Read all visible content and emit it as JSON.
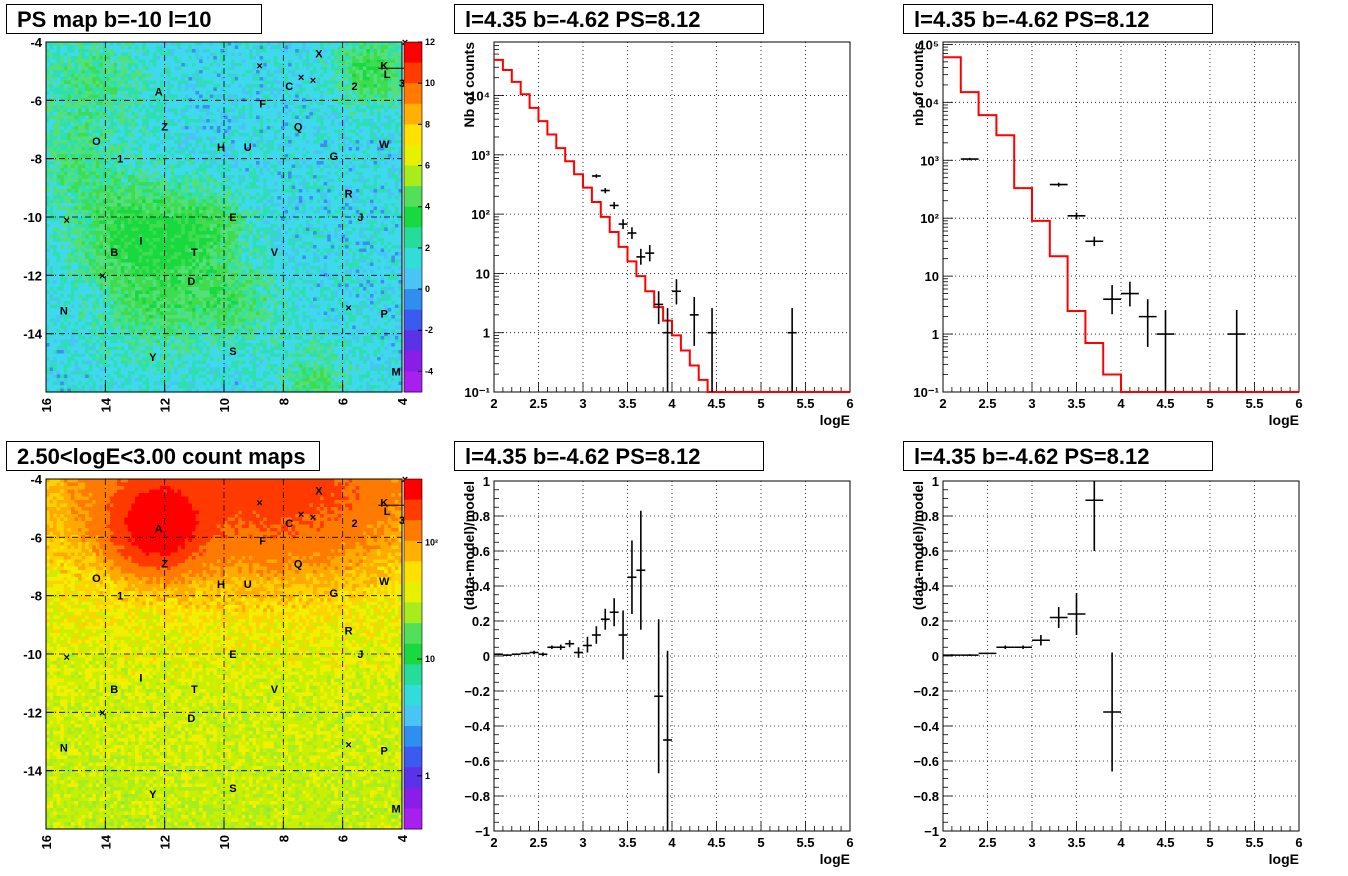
{
  "titles": {
    "map_top": "PS map b=-10 l=10",
    "map_bottom": "2.50<logE<3.00 count maps",
    "spec_left": "l=4.35 b=-4.62 PS=8.12",
    "spec_right": "l=4.35 b=-4.62 PS=8.12",
    "res_left": "l=4.35 b=-4.62 PS=8.12",
    "res_right": "l=4.35 b=-4.62 PS=8.12"
  },
  "colors": {
    "model": "#ff0000",
    "data": "#000000",
    "ps_background": "#3fd9ee",
    "count_background": "#b7f03a"
  },
  "chart_data": [
    {
      "id": "ps_map",
      "type": "heatmap",
      "title": "PS map b=-10 l=10",
      "xlim": [
        16,
        4
      ],
      "ylim": [
        -16,
        -4
      ],
      "xticks": [
        16,
        14,
        12,
        10,
        8,
        6,
        4
      ],
      "yticks": [
        -4,
        -6,
        -8,
        -10,
        -12,
        -14
      ],
      "zlim": [
        -5,
        12
      ],
      "colorbar_ticks": [
        "12",
        "10",
        "8",
        "6",
        "4",
        "2",
        "0",
        "-2",
        "-4"
      ],
      "colorbar_values": [
        12,
        10,
        8,
        6,
        4,
        2,
        0,
        -2,
        -4
      ],
      "sources": [
        {
          "label": "X",
          "l": 6.8,
          "b": -4.4
        },
        {
          "label": "K",
          "l": 4.6,
          "b": -4.8
        },
        {
          "label": "L",
          "l": 4.5,
          "b": -5.1
        },
        {
          "label": "3",
          "l": 4.0,
          "b": -5.4
        },
        {
          "label": "2",
          "l": 5.6,
          "b": -5.5
        },
        {
          "label": "C",
          "l": 7.8,
          "b": -5.5
        },
        {
          "label": "A",
          "l": 12.2,
          "b": -5.7
        },
        {
          "label": "F",
          "l": 8.7,
          "b": -6.1
        },
        {
          "label": "Z",
          "l": 12.0,
          "b": -6.9
        },
        {
          "label": "Q",
          "l": 7.5,
          "b": -6.9
        },
        {
          "label": "O",
          "l": 14.3,
          "b": -7.4
        },
        {
          "label": "H",
          "l": 10.1,
          "b": -7.6
        },
        {
          "label": "U",
          "l": 9.2,
          "b": -7.6
        },
        {
          "label": "W",
          "l": 4.6,
          "b": -7.5
        },
        {
          "label": "G",
          "l": 6.3,
          "b": -7.9
        },
        {
          "label": "1",
          "l": 13.5,
          "b": -8.0
        },
        {
          "label": "R",
          "l": 5.8,
          "b": -9.2
        },
        {
          "label": "E",
          "l": 9.7,
          "b": -10.0
        },
        {
          "label": "J",
          "l": 5.4,
          "b": -10.0
        },
        {
          "label": "I",
          "l": 12.8,
          "b": -10.8
        },
        {
          "label": "B",
          "l": 13.7,
          "b": -11.2
        },
        {
          "label": "T",
          "l": 11.0,
          "b": -11.2
        },
        {
          "label": "V",
          "l": 8.3,
          "b": -11.2
        },
        {
          "label": "D",
          "l": 11.1,
          "b": -12.2
        },
        {
          "label": "N",
          "l": 15.4,
          "b": -13.2
        },
        {
          "label": "P",
          "l": 4.6,
          "b": -13.3
        },
        {
          "label": "Y",
          "l": 12.4,
          "b": -14.8
        },
        {
          "label": "S",
          "l": 9.7,
          "b": -14.6
        },
        {
          "label": "M",
          "l": 4.2,
          "b": -15.3
        }
      ],
      "crosses": [
        {
          "l": 8.8,
          "b": -4.8
        },
        {
          "l": 7.4,
          "b": -5.2
        },
        {
          "l": 7.0,
          "b": -5.3
        },
        {
          "l": 3.9,
          "b": -4.0
        },
        {
          "l": 15.3,
          "b": -10.1
        },
        {
          "l": 14.1,
          "b": -12.0
        },
        {
          "l": 5.8,
          "b": -13.1
        }
      ]
    },
    {
      "id": "count_map",
      "type": "heatmap",
      "title": "2.50<logE<3.00 count maps",
      "xlim": [
        16,
        4
      ],
      "ylim": [
        -16,
        -4
      ],
      "xticks": [
        16,
        14,
        12,
        10,
        8,
        6,
        4
      ],
      "yticks": [
        -4,
        -6,
        -8,
        -10,
        -12,
        -14
      ],
      "zscale": "log",
      "colorbar_ticks": [
        "10²",
        "10",
        "1"
      ],
      "colorbar_values": [
        100,
        10,
        1
      ]
    },
    {
      "id": "spec_left",
      "type": "line",
      "title": "l=4.35 b=-4.62 PS=8.12",
      "xlabel": "logE",
      "ylabel": "Nb of counts",
      "xlim": [
        2,
        6
      ],
      "ylim": [
        0.1,
        80000
      ],
      "yscale": "log",
      "xticks": [
        "2",
        "2.5",
        "3",
        "3.5",
        "4",
        "4.5",
        "5",
        "5.5",
        "6"
      ],
      "yticks": [
        "10⁻¹",
        "1",
        "10",
        "10²",
        "10³",
        "10⁴"
      ],
      "grid": true,
      "series": [
        {
          "kind": "histogram-model",
          "bin_width": 0.1,
          "x_start": 2.0,
          "values": [
            40000,
            27000,
            17000,
            10500,
            6200,
            3700,
            2200,
            1300,
            780,
            470,
            280,
            160,
            90,
            50,
            28,
            16,
            9,
            5,
            2.7,
            1.6,
            0.9,
            0.5,
            0.28,
            0.16,
            0.1,
            0.1,
            0.1,
            0.1,
            0.1,
            0.1,
            0.1,
            0.1,
            0.1,
            0.1,
            0.1,
            0.1,
            0.1,
            0.1,
            0.1,
            0.1
          ]
        },
        {
          "kind": "data-points",
          "points": [
            {
              "x": 3.15,
              "y": 440,
              "ylo": 410,
              "yhi": 470
            },
            {
              "x": 3.25,
              "y": 250,
              "ylo": 225,
              "yhi": 275
            },
            {
              "x": 3.35,
              "y": 140,
              "ylo": 122,
              "yhi": 160
            },
            {
              "x": 3.45,
              "y": 68,
              "ylo": 56,
              "yhi": 82
            },
            {
              "x": 3.55,
              "y": 48,
              "ylo": 38,
              "yhi": 60
            },
            {
              "x": 3.65,
              "y": 19,
              "ylo": 14,
              "yhi": 26
            },
            {
              "x": 3.75,
              "y": 22,
              "ylo": 16,
              "yhi": 30
            },
            {
              "x": 3.85,
              "y": 3,
              "ylo": 1.4,
              "yhi": 5
            },
            {
              "x": 3.95,
              "y": 1,
              "ylo": 0.1,
              "yhi": 2.6
            },
            {
              "x": 4.05,
              "y": 5,
              "ylo": 3,
              "yhi": 8
            },
            {
              "x": 4.25,
              "y": 2,
              "ylo": 0.6,
              "yhi": 4
            },
            {
              "x": 4.45,
              "y": 1,
              "ylo": 0.1,
              "yhi": 2.6
            },
            {
              "x": 5.35,
              "y": 1,
              "ylo": 0.1,
              "yhi": 2.6
            }
          ]
        }
      ]
    },
    {
      "id": "spec_right",
      "type": "line",
      "title": "l=4.35 b=-4.62 PS=8.12",
      "xlabel": "logE",
      "ylabel": "nb of counts",
      "xlim": [
        2,
        6
      ],
      "ylim": [
        0.1,
        110000
      ],
      "yscale": "log",
      "xticks": [
        "2",
        "2.5",
        "3",
        "3.5",
        "4",
        "4.5",
        "5",
        "5.5",
        "6"
      ],
      "yticks": [
        "10⁻¹",
        "1",
        "10",
        "10²",
        "10³",
        "10⁴",
        "10⁵"
      ],
      "grid": true,
      "series": [
        {
          "kind": "histogram-model",
          "bin_width": 0.2,
          "x_start": 2.0,
          "values": [
            60000,
            15000,
            6000,
            2700,
            330,
            90,
            22,
            2.5,
            0.7,
            0.2,
            0.1,
            0.1,
            0.1,
            0.1,
            0.1,
            0.1,
            0.1,
            0.1,
            0.1,
            0.1
          ]
        },
        {
          "kind": "data-points",
          "points": [
            {
              "x": 2.3,
              "y": 1050,
              "xerr": 0.1,
              "ylo": 1000,
              "yhi": 1100
            },
            {
              "x": 3.3,
              "y": 380,
              "xerr": 0.1,
              "ylo": 350,
              "yhi": 410
            },
            {
              "x": 3.5,
              "y": 110,
              "xerr": 0.1,
              "ylo": 95,
              "yhi": 125
            },
            {
              "x": 3.7,
              "y": 40,
              "xerr": 0.1,
              "ylo": 33,
              "yhi": 48
            },
            {
              "x": 3.9,
              "y": 4,
              "xerr": 0.1,
              "ylo": 2.2,
              "yhi": 7
            },
            {
              "x": 4.1,
              "y": 5,
              "xerr": 0.1,
              "ylo": 3,
              "yhi": 8
            },
            {
              "x": 4.3,
              "y": 2,
              "xerr": 0.1,
              "ylo": 0.6,
              "yhi": 4
            },
            {
              "x": 4.5,
              "y": 1,
              "xerr": 0.1,
              "ylo": 0.1,
              "yhi": 2.6
            },
            {
              "x": 5.3,
              "y": 1,
              "xerr": 0.1,
              "ylo": 0.1,
              "yhi": 2.6
            }
          ]
        }
      ]
    },
    {
      "id": "res_left",
      "type": "scatter",
      "title": "l=4.35 b=-4.62 PS=8.12",
      "xlabel": "logE",
      "ylabel": "(data-model)/model",
      "xlim": [
        2,
        6
      ],
      "ylim": [
        -1,
        1
      ],
      "xticks": [
        "2",
        "2.5",
        "3",
        "3.5",
        "4",
        "4.5",
        "5",
        "5.5",
        "6"
      ],
      "yticks": [
        "1",
        "0.8",
        "0.6",
        "0.4",
        "0.2",
        "0",
        "−0.2",
        "−0.4",
        "−0.6",
        "−0.8",
        "−1"
      ],
      "grid": true,
      "points": [
        {
          "x": 2.05,
          "y": 0.01,
          "xerr": 0.05,
          "ylo": 0.005,
          "yhi": 0.015
        },
        {
          "x": 2.15,
          "y": 0.005,
          "xerr": 0.05,
          "ylo": 0.0,
          "yhi": 0.01
        },
        {
          "x": 2.25,
          "y": 0.01,
          "xerr": 0.05,
          "ylo": 0.005,
          "yhi": 0.015
        },
        {
          "x": 2.35,
          "y": 0.015,
          "xerr": 0.05,
          "ylo": 0.01,
          "yhi": 0.02
        },
        {
          "x": 2.45,
          "y": 0.02,
          "xerr": 0.05,
          "ylo": 0.01,
          "yhi": 0.03
        },
        {
          "x": 2.55,
          "y": 0.01,
          "xerr": 0.05,
          "ylo": 0.0,
          "yhi": 0.02
        },
        {
          "x": 2.65,
          "y": 0.05,
          "xerr": 0.05,
          "ylo": 0.04,
          "yhi": 0.06
        },
        {
          "x": 2.75,
          "y": 0.05,
          "xerr": 0.05,
          "ylo": 0.035,
          "yhi": 0.065
        },
        {
          "x": 2.85,
          "y": 0.07,
          "xerr": 0.05,
          "ylo": 0.05,
          "yhi": 0.09
        },
        {
          "x": 2.95,
          "y": 0.02,
          "xerr": 0.05,
          "ylo": -0.01,
          "yhi": 0.05
        },
        {
          "x": 3.05,
          "y": 0.06,
          "xerr": 0.05,
          "ylo": 0.02,
          "yhi": 0.11
        },
        {
          "x": 3.15,
          "y": 0.12,
          "xerr": 0.05,
          "ylo": 0.07,
          "yhi": 0.17
        },
        {
          "x": 3.25,
          "y": 0.21,
          "xerr": 0.05,
          "ylo": 0.15,
          "yhi": 0.27
        },
        {
          "x": 3.35,
          "y": 0.25,
          "xerr": 0.05,
          "ylo": 0.17,
          "yhi": 0.33
        },
        {
          "x": 3.45,
          "y": 0.12,
          "xerr": 0.05,
          "ylo": -0.02,
          "yhi": 0.26
        },
        {
          "x": 3.55,
          "y": 0.45,
          "xerr": 0.05,
          "ylo": 0.24,
          "yhi": 0.66
        },
        {
          "x": 3.65,
          "y": 0.49,
          "xerr": 0.05,
          "ylo": 0.15,
          "yhi": 0.83
        },
        {
          "x": 3.85,
          "y": -0.23,
          "xerr": 0.05,
          "ylo": -0.67,
          "yhi": 0.21
        },
        {
          "x": 3.95,
          "y": -0.48,
          "xerr": 0.05,
          "ylo": -1.0,
          "yhi": 0.03
        }
      ]
    },
    {
      "id": "res_right",
      "type": "scatter",
      "title": "l=4.35 b=-4.62 PS=8.12",
      "xlabel": "logE",
      "ylabel": "(data-model)/model",
      "xlim": [
        2,
        6
      ],
      "ylim": [
        -1,
        1
      ],
      "xticks": [
        "2",
        "2.5",
        "3",
        "3.5",
        "4",
        "4.5",
        "5",
        "5.5",
        "6"
      ],
      "yticks": [
        "1",
        "0.8",
        "0.6",
        "0.4",
        "0.2",
        "0",
        "−0.2",
        "−0.4",
        "−0.6",
        "−0.8",
        "−1"
      ],
      "grid": true,
      "points": [
        {
          "x": 2.1,
          "y": 0.005,
          "xerr": 0.1,
          "ylo": 0.0,
          "yhi": 0.01
        },
        {
          "x": 2.3,
          "y": 0.005,
          "xerr": 0.1,
          "ylo": 0.0,
          "yhi": 0.01
        },
        {
          "x": 2.5,
          "y": 0.015,
          "xerr": 0.1,
          "ylo": 0.01,
          "yhi": 0.02
        },
        {
          "x": 2.7,
          "y": 0.05,
          "xerr": 0.1,
          "ylo": 0.04,
          "yhi": 0.06
        },
        {
          "x": 2.9,
          "y": 0.05,
          "xerr": 0.1,
          "ylo": 0.04,
          "yhi": 0.06
        },
        {
          "x": 3.1,
          "y": 0.09,
          "xerr": 0.1,
          "ylo": 0.06,
          "yhi": 0.12
        },
        {
          "x": 3.3,
          "y": 0.22,
          "xerr": 0.1,
          "ylo": 0.16,
          "yhi": 0.28
        },
        {
          "x": 3.5,
          "y": 0.24,
          "xerr": 0.1,
          "ylo": 0.12,
          "yhi": 0.36
        },
        {
          "x": 3.7,
          "y": 0.89,
          "xerr": 0.1,
          "ylo": 0.6,
          "yhi": 1.0
        },
        {
          "x": 3.9,
          "y": -0.32,
          "xerr": 0.1,
          "ylo": -0.66,
          "yhi": 0.02
        }
      ]
    }
  ]
}
